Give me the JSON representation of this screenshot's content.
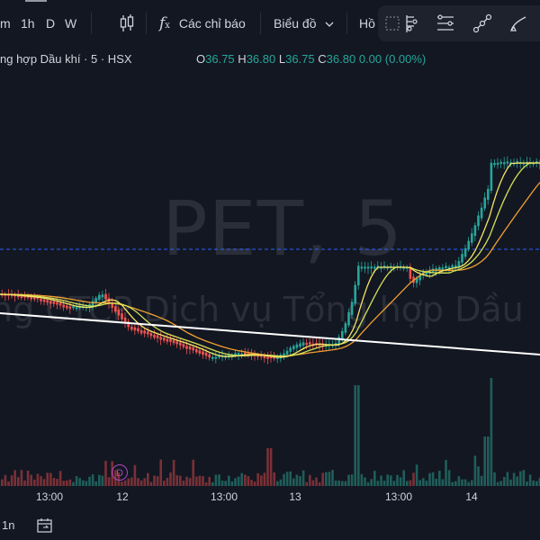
{
  "toolbar": {
    "intervals": [
      "m",
      "1h",
      "D",
      "W"
    ],
    "indicators_label": "Các chỉ báo",
    "chart_type_label": "Biểu đồ",
    "cutoff_label": "Hồ"
  },
  "legend": {
    "title": "ng hợp Dầu khí · 5 · HSX",
    "open_label": "O",
    "open": "36.75",
    "high_label": "H",
    "high": "36.80",
    "low_label": "L",
    "low": "36.75",
    "close_label": "C",
    "close": "36.80",
    "change": "0.00 (0.00%)"
  },
  "watermark": {
    "symbol": "PET, 5",
    "name": "ng CTCP Dịch vụ Tổng hợp Dầu"
  },
  "time_axis": [
    "13:00",
    "12",
    "13:00",
    "13",
    "13:00",
    "14"
  ],
  "dividend_marker": "D",
  "bottom": {
    "range_label": "1n"
  },
  "colors": {
    "background": "#131722",
    "up": "#26a69a",
    "down": "#ef5350",
    "ma_fast": "#f5e663",
    "ma_mid": "#d4e157",
    "ma_slow": "#f0a030",
    "trendline": "#ffffff",
    "price_line": "#2962ff",
    "dividend": "#ab47bc"
  },
  "icons": [
    "candles-icon",
    "indicators-icon",
    "chevron-down-icon",
    "layout-grid-icon",
    "alert-icon",
    "replay-icon",
    "trend-line-icon",
    "brush-icon",
    "calendar-range-icon"
  ]
}
